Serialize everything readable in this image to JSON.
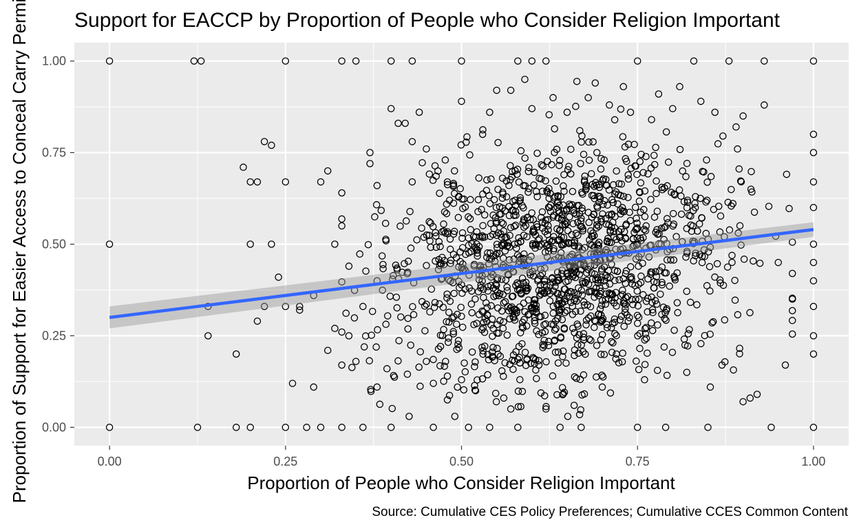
{
  "chart_data": {
    "type": "scatter",
    "title": "Support for EACCP by Proportion of People who Consider Religion Important",
    "xlabel": "Proportion of People who Consider Religion Important",
    "ylabel": "Proportion of Support for Easier Access to Conceal Carry Permits",
    "caption": "Source: Cumulative CES Policy Preferences; Cumulative CCES Common Content",
    "xlim": [
      -0.05,
      1.05
    ],
    "ylim": [
      -0.05,
      1.05
    ],
    "x_ticks": [
      0,
      0.25,
      0.5,
      0.75,
      1
    ],
    "x_tick_labels": [
      "0.00",
      "0.25",
      "0.50",
      "0.75",
      "1.00"
    ],
    "y_ticks": [
      0,
      0.25,
      0.5,
      0.75,
      1
    ],
    "y_tick_labels": [
      "0.00",
      "0.25",
      "0.50",
      "0.75",
      "1.00"
    ],
    "grid": true,
    "background": "#ebebeb",
    "point_style": "open-circle",
    "point_color": "#000000",
    "points": [
      [
        0.0,
        0.0
      ],
      [
        0.0,
        0.5
      ],
      [
        0.0,
        1.0
      ],
      [
        0.12,
        1.0
      ],
      [
        0.125,
        0.0
      ],
      [
        0.13,
        1.0
      ],
      [
        0.14,
        0.25
      ],
      [
        0.14,
        0.33
      ],
      [
        0.18,
        0.0
      ],
      [
        0.18,
        0.2
      ],
      [
        0.19,
        0.71
      ],
      [
        0.2,
        0.0
      ],
      [
        0.2,
        0.5
      ],
      [
        0.2,
        0.67
      ],
      [
        0.21,
        0.29
      ],
      [
        0.21,
        0.67
      ],
      [
        0.22,
        0.78
      ],
      [
        0.22,
        0.33
      ],
      [
        0.23,
        0.77
      ],
      [
        0.23,
        0.5
      ],
      [
        0.24,
        0.41
      ],
      [
        0.25,
        0.0
      ],
      [
        0.25,
        1.0
      ],
      [
        0.25,
        0.33
      ],
      [
        0.25,
        0.67
      ],
      [
        0.26,
        0.12
      ],
      [
        0.27,
        0.33
      ],
      [
        0.27,
        0.32
      ],
      [
        0.28,
        0.0
      ],
      [
        0.29,
        0.11
      ],
      [
        0.29,
        0.36
      ],
      [
        0.3,
        0.0
      ],
      [
        0.3,
        0.67
      ],
      [
        0.31,
        0.7
      ],
      [
        0.31,
        0.21
      ],
      [
        0.32,
        0.5
      ],
      [
        0.32,
        0.27
      ],
      [
        0.33,
        0.0
      ],
      [
        0.33,
        1.0
      ],
      [
        0.33,
        0.64
      ],
      [
        0.33,
        0.55
      ],
      [
        0.33,
        0.26
      ],
      [
        0.33,
        0.17
      ],
      [
        0.34,
        0.44
      ],
      [
        0.34,
        0.25
      ],
      [
        0.35,
        0.18
      ],
      [
        0.35,
        1.0
      ],
      [
        0.36,
        0.0
      ],
      [
        0.36,
        0.33
      ],
      [
        0.37,
        0.75
      ],
      [
        0.37,
        0.72
      ],
      [
        0.38,
        0.66
      ],
      [
        0.38,
        0.4
      ],
      [
        0.38,
        0.11
      ],
      [
        0.4,
        0.0
      ],
      [
        0.4,
        1.0
      ],
      [
        0.4,
        0.87
      ],
      [
        0.41,
        0.83
      ],
      [
        0.42,
        0.83
      ],
      [
        0.43,
        1.0
      ],
      [
        0.43,
        0.78
      ],
      [
        0.43,
        0.67
      ],
      [
        0.44,
        0.86
      ],
      [
        0.45,
        0.76
      ],
      [
        0.45,
        0.18
      ],
      [
        0.46,
        0.0
      ],
      [
        0.46,
        0.12
      ],
      [
        0.48,
        0.67
      ],
      [
        0.48,
        0.14
      ],
      [
        0.49,
        0.7
      ],
      [
        0.5,
        1.0
      ],
      [
        0.5,
        0.89
      ],
      [
        0.5,
        0.13
      ],
      [
        0.51,
        0.0
      ],
      [
        0.52,
        0.52
      ],
      [
        0.52,
        0.1
      ],
      [
        0.53,
        0.8
      ],
      [
        0.54,
        0.86
      ],
      [
        0.54,
        0.0
      ],
      [
        0.55,
        0.92
      ],
      [
        0.56,
        0.08
      ],
      [
        0.57,
        0.05
      ],
      [
        0.57,
        0.92
      ],
      [
        0.58,
        1.0
      ],
      [
        0.58,
        0.0
      ],
      [
        0.59,
        0.95
      ],
      [
        0.6,
        0.87
      ],
      [
        0.6,
        1.0
      ],
      [
        0.61,
        0.17
      ],
      [
        0.62,
        1.0
      ],
      [
        0.62,
        0.05
      ],
      [
        0.63,
        0.9
      ],
      [
        0.64,
        0.0
      ],
      [
        0.65,
        0.86
      ],
      [
        0.66,
        0.06
      ],
      [
        0.67,
        0.0
      ],
      [
        0.68,
        0.9
      ],
      [
        0.69,
        0.94
      ],
      [
        0.7,
        0.11
      ],
      [
        0.71,
        0.88
      ],
      [
        0.72,
        0.2
      ],
      [
        0.73,
        0.93
      ],
      [
        0.74,
        0.86
      ],
      [
        0.75,
        0.0
      ],
      [
        0.75,
        1.0
      ],
      [
        0.76,
        0.13
      ],
      [
        0.77,
        0.84
      ],
      [
        0.78,
        0.91
      ],
      [
        0.79,
        0.0
      ],
      [
        0.8,
        0.87
      ],
      [
        0.81,
        0.93
      ],
      [
        0.82,
        0.15
      ],
      [
        0.83,
        1.0
      ],
      [
        0.84,
        0.89
      ],
      [
        0.85,
        0.0
      ],
      [
        0.86,
        0.86
      ],
      [
        0.87,
        0.17
      ],
      [
        0.88,
        1.0
      ],
      [
        0.89,
        0.82
      ],
      [
        0.9,
        0.07
      ],
      [
        0.9,
        0.85
      ],
      [
        0.91,
        0.08
      ],
      [
        0.92,
        0.09
      ],
      [
        0.93,
        1.0
      ],
      [
        0.93,
        0.88
      ],
      [
        0.94,
        0.0
      ],
      [
        0.95,
        0.45
      ],
      [
        0.96,
        0.17
      ],
      [
        0.97,
        0.35
      ],
      [
        1.0,
        0.0
      ],
      [
        1.0,
        0.25
      ],
      [
        1.0,
        0.5
      ],
      [
        1.0,
        0.75
      ],
      [
        1.0,
        1.0
      ],
      [
        1.0,
        0.33
      ],
      [
        1.0,
        0.67
      ],
      [
        1.0,
        0.6
      ],
      [
        1.0,
        0.4
      ],
      [
        1.0,
        0.8
      ],
      [
        1.0,
        0.2
      ],
      [
        1.0,
        0.45
      ]
    ],
    "cluster": {
      "x_center": 0.64,
      "x_spread": 0.12,
      "y_center": 0.45,
      "y_spread": 0.16
    },
    "fit_line": {
      "method": "lm",
      "color": "#3366ff",
      "x": [
        0,
        1
      ],
      "y": [
        0.3,
        0.54
      ],
      "ci_lower": [
        0.27,
        0.52
      ],
      "ci_upper": [
        0.33,
        0.56
      ],
      "ci_color": "#999999"
    }
  }
}
